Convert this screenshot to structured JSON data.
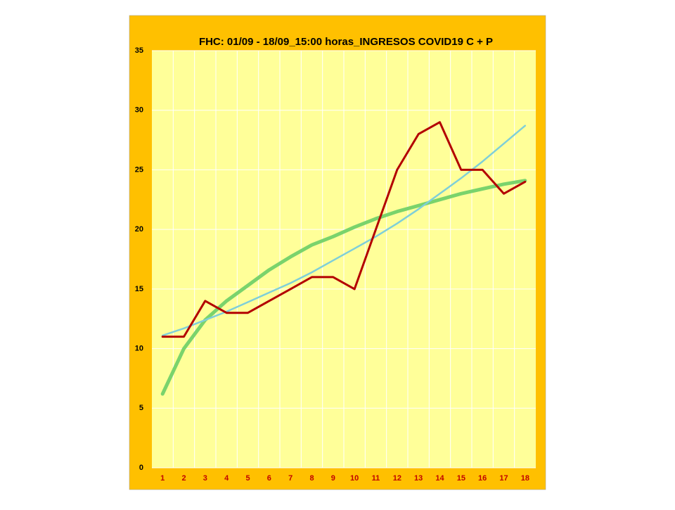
{
  "chart_data": {
    "type": "line",
    "title": "FHC: 01/09 - 18/09_15:00 horas_INGRESOS COVID19 C + P",
    "categories": [
      1,
      2,
      3,
      4,
      5,
      6,
      7,
      8,
      9,
      10,
      11,
      12,
      13,
      14,
      15,
      16,
      17,
      18
    ],
    "series": [
      {
        "color": "#7ad36c",
        "width": 5,
        "values": [
          6.2,
          10,
          12.4,
          14.0,
          15.3,
          16.6,
          17.7,
          18.7,
          19.4,
          20.2,
          20.9,
          21.5,
          22.0,
          22.5,
          23.0,
          23.4,
          23.8,
          24.1
        ]
      },
      {
        "color": "#7fcfd8",
        "width": 2.5,
        "values": [
          11.1,
          11.7,
          12.4,
          13.1,
          13.9,
          14.7,
          15.5,
          16.4,
          17.4,
          18.4,
          19.4,
          20.5,
          21.7,
          23.0,
          24.3,
          25.7,
          27.2,
          28.7
        ]
      },
      {
        "color": "#b30000",
        "width": 3,
        "values": [
          11,
          11,
          14,
          13,
          13,
          14,
          15,
          16,
          16,
          15,
          20,
          25,
          28,
          29,
          25,
          25,
          23,
          24
        ]
      }
    ],
    "ylim": [
      0,
      35
    ],
    "yticks": [
      0,
      5,
      10,
      15,
      20,
      25,
      30,
      35
    ],
    "grid": true
  }
}
